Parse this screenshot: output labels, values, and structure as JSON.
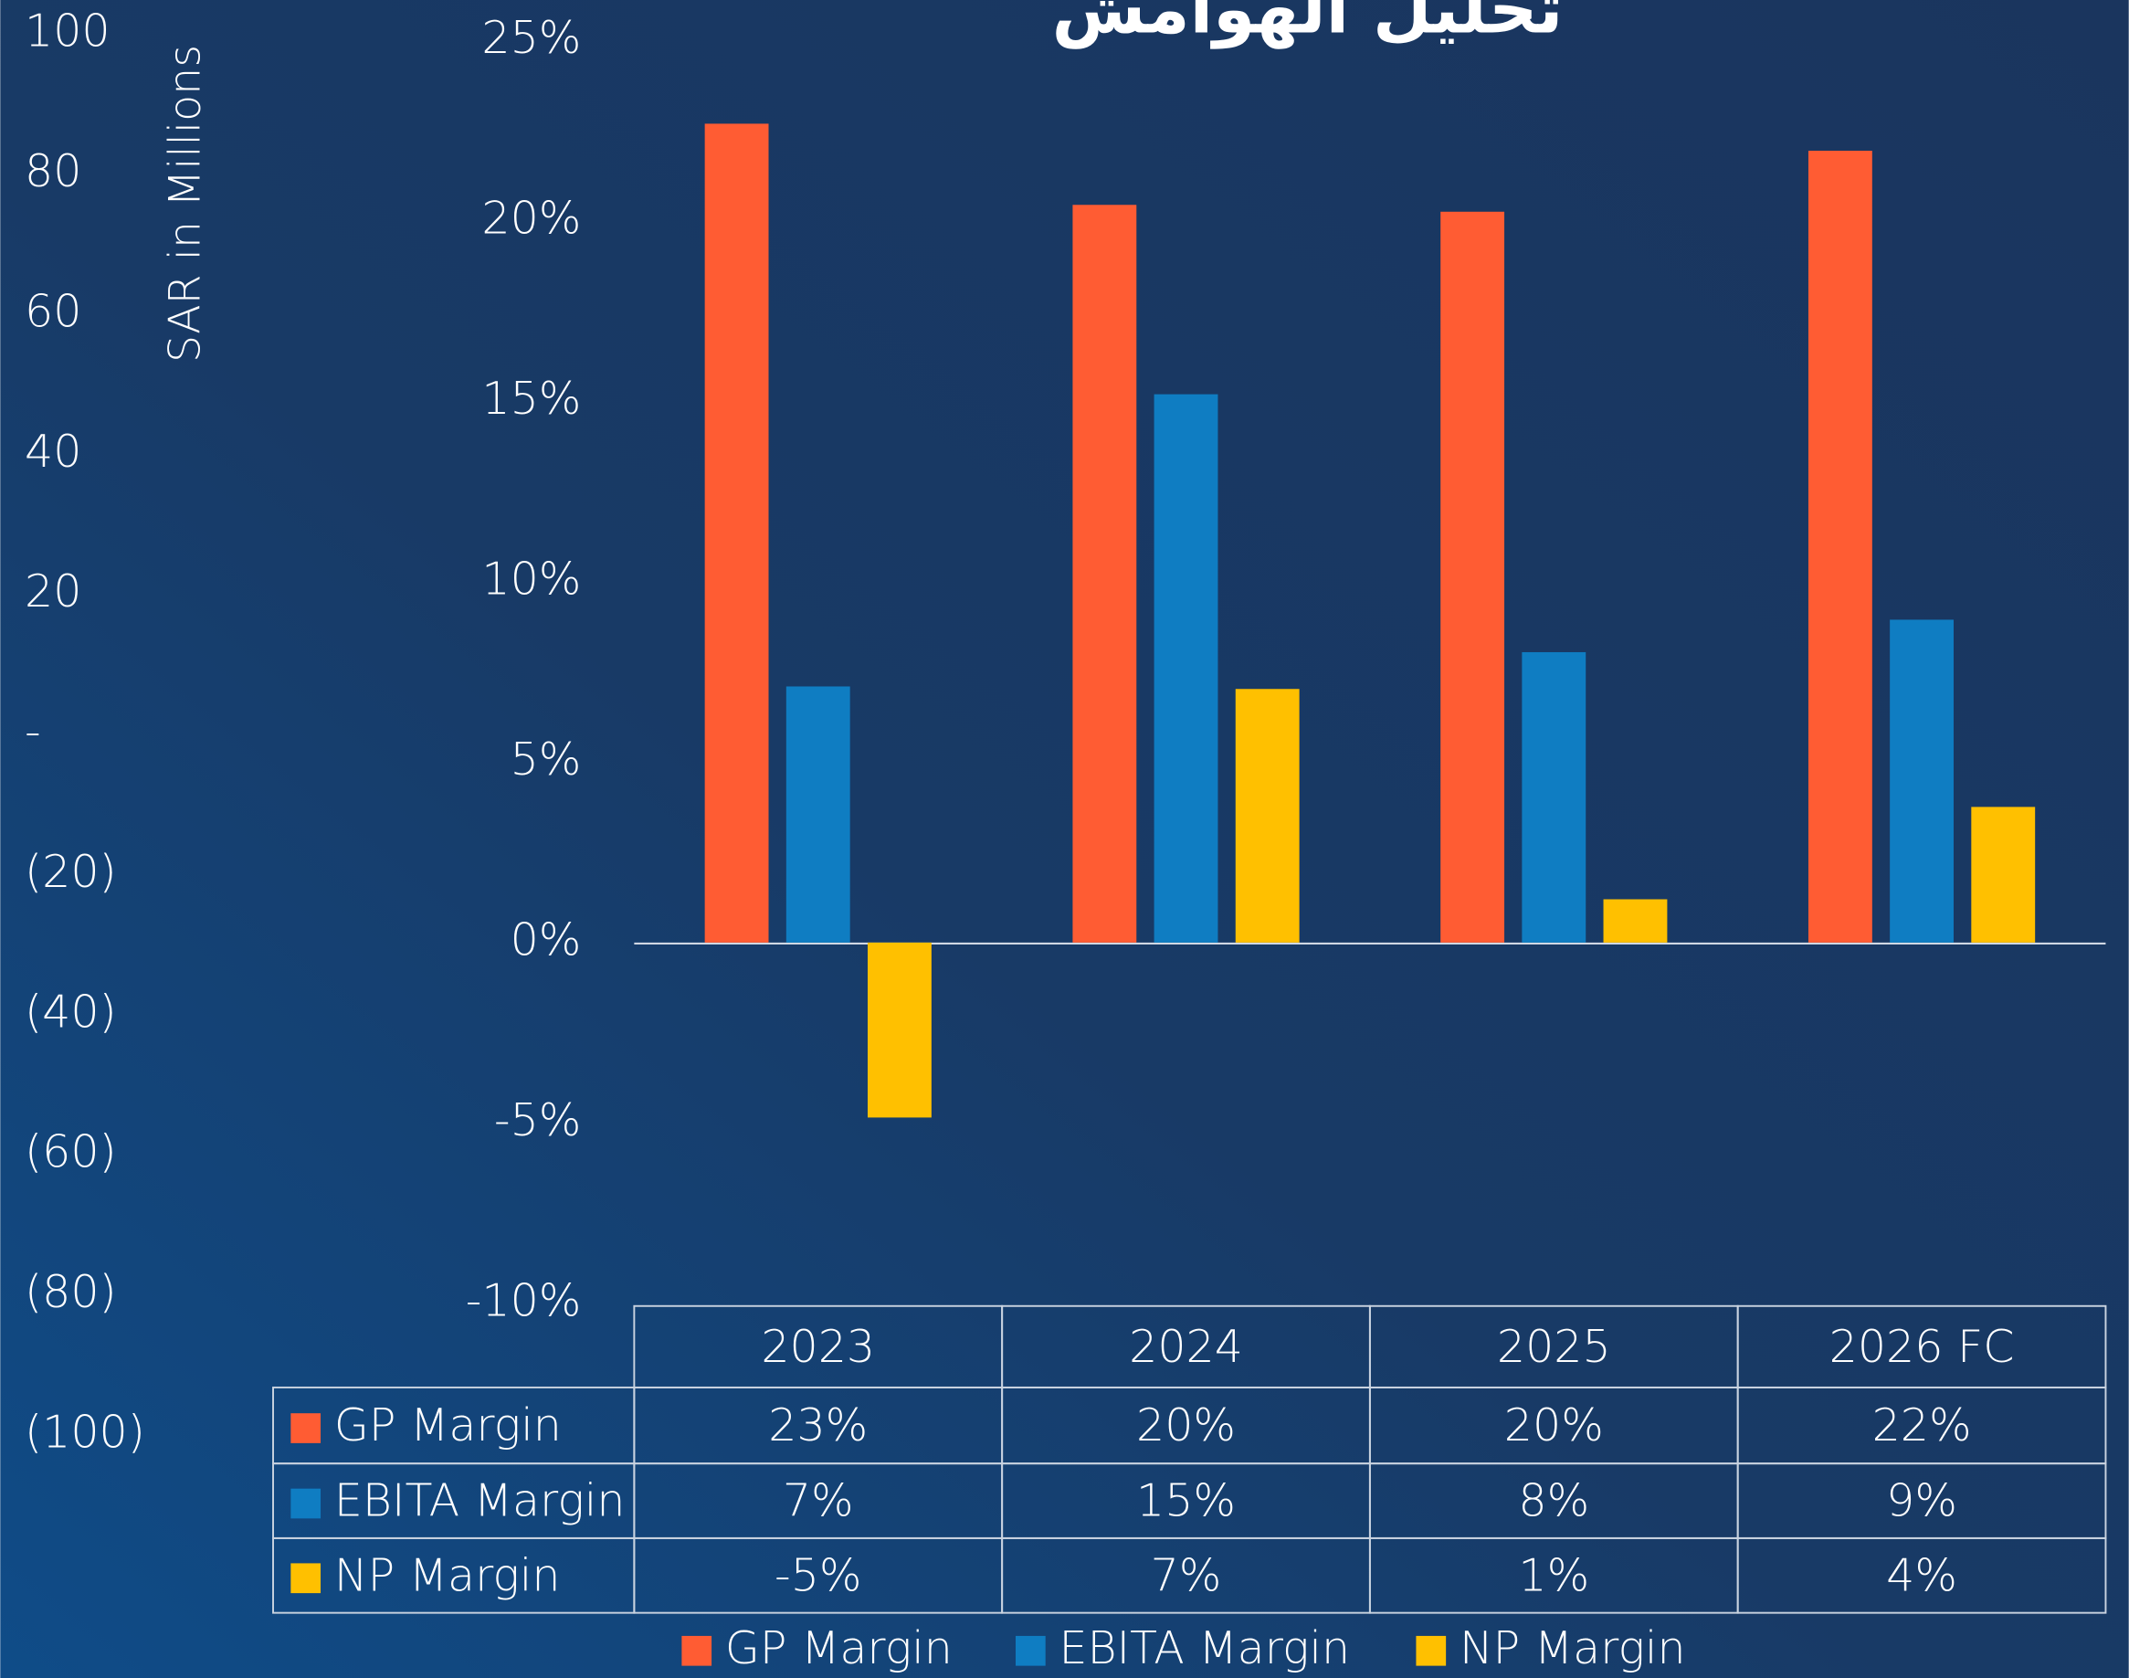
{
  "chart_data": {
    "type": "bar",
    "title": "تحليل الهوامش",
    "categories": [
      "2023",
      "2024",
      "2025",
      "2026 FC"
    ],
    "series": [
      {
        "name": "GP Margin",
        "color": "#ff5c33",
        "values": [
          22.7,
          20.45,
          20.26,
          21.95
        ],
        "value_labels": [
          "23%",
          "20%",
          "20%",
          "22%"
        ]
      },
      {
        "name": "EBITA Margin",
        "color": "#0f7dc2",
        "values": [
          7.1,
          15.2,
          8.05,
          8.95
        ],
        "value_labels": [
          "7%",
          "15%",
          "8%",
          "9%"
        ]
      },
      {
        "name": "NP Margin",
        "color": "#ffc000",
        "values": [
          -4.85,
          7.03,
          1.2,
          3.76
        ],
        "value_labels": [
          "-5%",
          "7%",
          "1%",
          "4%"
        ]
      }
    ],
    "ylim": [
      -10,
      25
    ],
    "yticks": [
      {
        "value": 25,
        "label": "25%"
      },
      {
        "value": 20,
        "label": "20%"
      },
      {
        "value": 15,
        "label": "15%"
      },
      {
        "value": 10,
        "label": "10%"
      },
      {
        "value": 5,
        "label": "5%"
      },
      {
        "value": 0,
        "label": "0%"
      },
      {
        "value": -5,
        "label": "-5%"
      },
      {
        "value": -10,
        "label": "-10%"
      }
    ],
    "y2label": "SAR in Millions",
    "y2lim": [
      -100,
      100
    ],
    "y2ticks": [
      100,
      80,
      60,
      40,
      20,
      {
        "value": 0,
        "label": "-"
      },
      {
        "value": -20,
        "label": "(20)"
      },
      {
        "value": -40,
        "label": "(40)"
      },
      {
        "value": -60,
        "label": "(60)"
      },
      {
        "value": -80,
        "label": "(80)"
      },
      {
        "value": -100,
        "label": "(100)"
      }
    ],
    "grid": false,
    "legend": "bottom"
  }
}
